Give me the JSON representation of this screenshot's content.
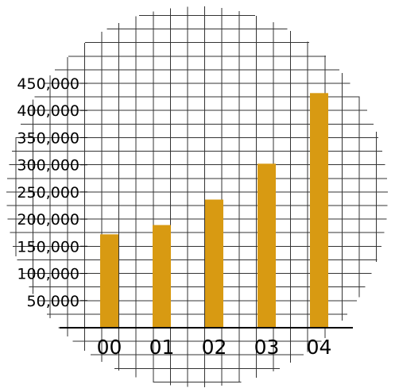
{
  "chart_data": {
    "type": "bar",
    "categories": [
      "00",
      "01",
      "02",
      "03",
      "04"
    ],
    "values": [
      172000,
      189000,
      236000,
      302000,
      432000
    ],
    "title": "",
    "xlabel": "",
    "ylabel": "",
    "ylim": [
      0,
      450000
    ],
    "yticks": [
      50000,
      100000,
      150000,
      200000,
      250000,
      300000,
      350000,
      400000,
      450000
    ],
    "ytick_labels": [
      "50,000",
      "100,000",
      "150,000",
      "200,000",
      "250,000",
      "300,000",
      "350,000",
      "400,000",
      "450,000"
    ],
    "grid": true,
    "grid_shape": "circular",
    "legend": "none",
    "bar_color": "#D89A12",
    "grid_color": "#333333",
    "axis_color": "#000000"
  }
}
